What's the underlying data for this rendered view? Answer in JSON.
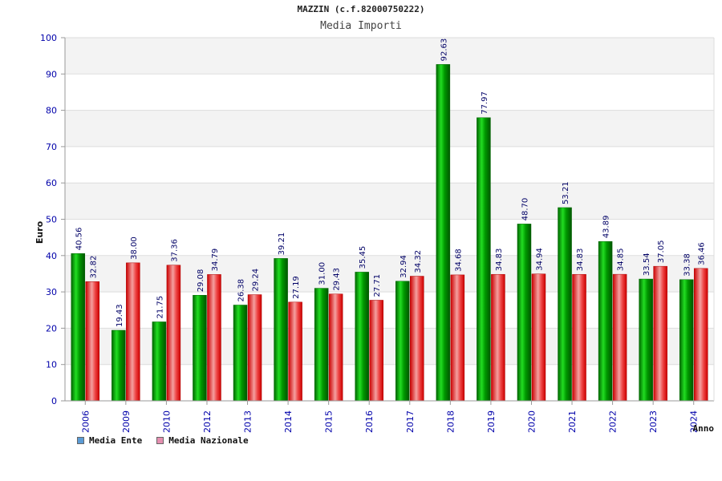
{
  "title": "MAZZIN (c.f.82000750222)",
  "subtitle": "Media Importi",
  "chart_data": {
    "type": "bar",
    "ylabel": "Euro",
    "xlabel": "Anno",
    "ylim": [
      0,
      100
    ],
    "yticks": [
      0,
      10,
      20,
      30,
      40,
      50,
      60,
      70,
      80,
      90,
      100
    ],
    "grid": true,
    "legend_position": "bottom-left",
    "categories": [
      "2006",
      "2009",
      "2010",
      "2012",
      "2013",
      "2014",
      "2015",
      "2016",
      "2017",
      "2018",
      "2019",
      "2020",
      "2021",
      "2022",
      "2023",
      "2024"
    ],
    "series": [
      {
        "name": "Media Ente",
        "color": "#009900",
        "legend_color": "#5b9bd5",
        "values": [
          40.56,
          19.43,
          21.75,
          29.08,
          26.38,
          39.21,
          31.0,
          35.45,
          32.94,
          92.63,
          77.97,
          48.7,
          53.21,
          43.89,
          33.54,
          33.38
        ],
        "labels": [
          "40.56",
          "19.43",
          "21.75",
          "29.08",
          "26.38",
          "39.21",
          "31.00",
          "35.45",
          "32.94",
          "92.63",
          "77.97",
          "48.70",
          "53.21",
          "43.89",
          "33.54",
          "33.38"
        ]
      },
      {
        "name": "Media Nazionale",
        "color": "#dd1111",
        "legend_color": "#e58fb0",
        "values": [
          32.82,
          38.0,
          37.36,
          34.79,
          29.24,
          27.19,
          29.43,
          27.71,
          34.32,
          34.68,
          34.83,
          34.94,
          34.83,
          34.85,
          37.05,
          36.46
        ],
        "labels": [
          "32.82",
          "38.00",
          "37.36",
          "34.79",
          "29.24",
          "27.19",
          "29.43",
          "27.71",
          "34.32",
          "34.68",
          "34.83",
          "34.94",
          "34.83",
          "34.85",
          "37.05",
          "36.46"
        ]
      }
    ]
  }
}
